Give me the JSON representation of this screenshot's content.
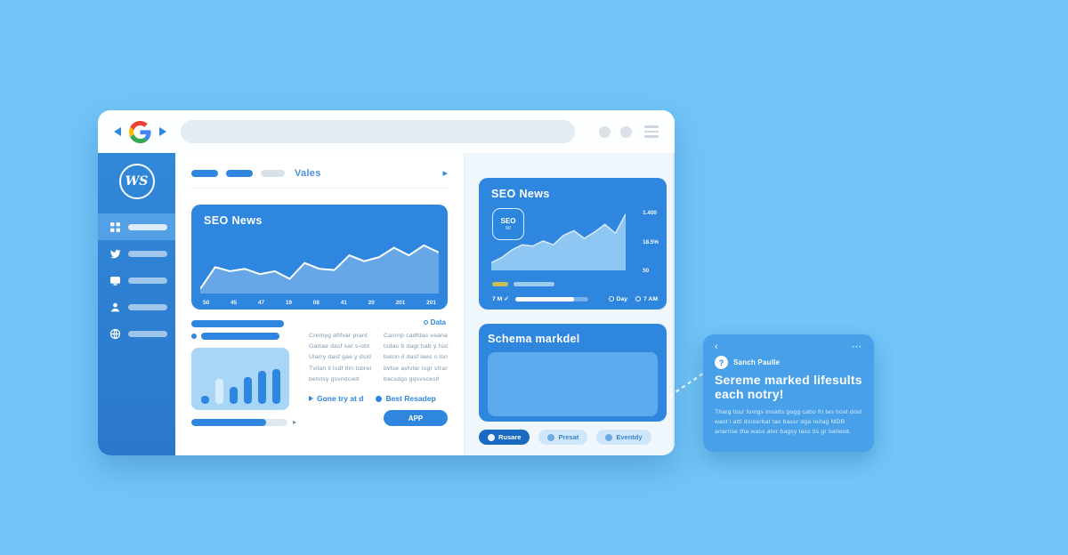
{
  "colors": {
    "background": "#71c5f8",
    "accent_blue": "#2e86de",
    "sidebar_blue": "#2d7fd2",
    "panel_bg": "#eff6fc",
    "tooltip_bg": "#47a0e8",
    "legend_yellow": "#c8bf5a"
  },
  "icons": {
    "chevron": "▸",
    "caret": "▸",
    "back": "‹",
    "ellipsis": "⋯"
  },
  "browser": {
    "logo": "google-g-logo",
    "search_value": ""
  },
  "sidebar": {
    "logo_text": "WS",
    "items": [
      {
        "icon": "dashboard-icon",
        "active": true
      },
      {
        "icon": "bird-icon",
        "active": false
      },
      {
        "icon": "monitor-icon",
        "active": false
      },
      {
        "icon": "user-icon",
        "active": false
      },
      {
        "icon": "globe-icon",
        "active": false
      }
    ]
  },
  "main": {
    "nav": {
      "title": "Vales"
    },
    "seo_card": {
      "title": "SEO News"
    },
    "data_link": "Data",
    "columns": [
      {
        "lines": [
          "Cremyg aftfvar prant",
          "Gartae dasf sar s-obt",
          "Ularry dasf gae y dsid",
          "Tvilan il tsdf tlin tsbrel",
          "betvlsy gsvndcietl"
        ]
      },
      {
        "lines": [
          "Casrnp cadfdas vaana",
          "tsdas b dagr hab y tsid",
          "baton il dasf laes s tsnid",
          "bvtse avtvlar tsgr sfrang",
          "bacsdgs gqsvscestl"
        ]
      }
    ],
    "legend": [
      {
        "icon": "play-icon",
        "label": "Gone try at d"
      },
      {
        "icon": "dot-icon",
        "label": "Best Resadep"
      }
    ],
    "cta_label": "APP"
  },
  "right_panel": {
    "news_card": {
      "title": "SEO News",
      "badge": {
        "line1": "SEO",
        "line2": "60"
      },
      "y_labels": [
        "1.400",
        "18.5%",
        "50"
      ],
      "footer": {
        "left": "7 M ✓",
        "items": [
          "Day",
          "7 AM"
        ]
      }
    },
    "schema_card": {
      "title": "Schema markdel"
    },
    "buttons": [
      {
        "label": "Rusare",
        "primary": true
      },
      {
        "label": "Presat",
        "primary": false
      },
      {
        "label": "Eventdy",
        "primary": false
      }
    ]
  },
  "tooltip": {
    "badge_label": "Sanch Paulle",
    "heading": "Sereme marked lifesults each notry!",
    "body": "Tharg tour fontgs insatts gogg cabo fri tes host dost wast i atti dosterbat tas bassr dga reitag MDB anarrise tha wass ater bagsy tass tls gr ballesd."
  },
  "chart_data": [
    {
      "id": "main_line",
      "type": "area",
      "title": "SEO News",
      "values": [
        8,
        45,
        38,
        42,
        33,
        38,
        25,
        52,
        42,
        40,
        65,
        55,
        62,
        78,
        65,
        82,
        70
      ],
      "x_labels": [
        "50",
        "45",
        "47",
        "19",
        "08",
        "41",
        "20",
        "201",
        "201"
      ],
      "ylim": [
        0,
        100
      ],
      "legend_position": "none",
      "grid": false
    },
    {
      "id": "panel_line",
      "type": "area",
      "title": "SEO News",
      "values": [
        12,
        20,
        32,
        40,
        38,
        46,
        40,
        55,
        62,
        50,
        60,
        72,
        58,
        88
      ],
      "y_labels": [
        "1.400",
        "18.5%",
        "50"
      ],
      "ylim": [
        0,
        100
      ],
      "legend_position": "bottom-left",
      "grid": false
    },
    {
      "id": "mini_bars",
      "type": "bar",
      "values": [
        15,
        45,
        30,
        48,
        58,
        62
      ],
      "highlight_index": 1,
      "ylim": [
        0,
        100
      ],
      "grid": false
    }
  ]
}
